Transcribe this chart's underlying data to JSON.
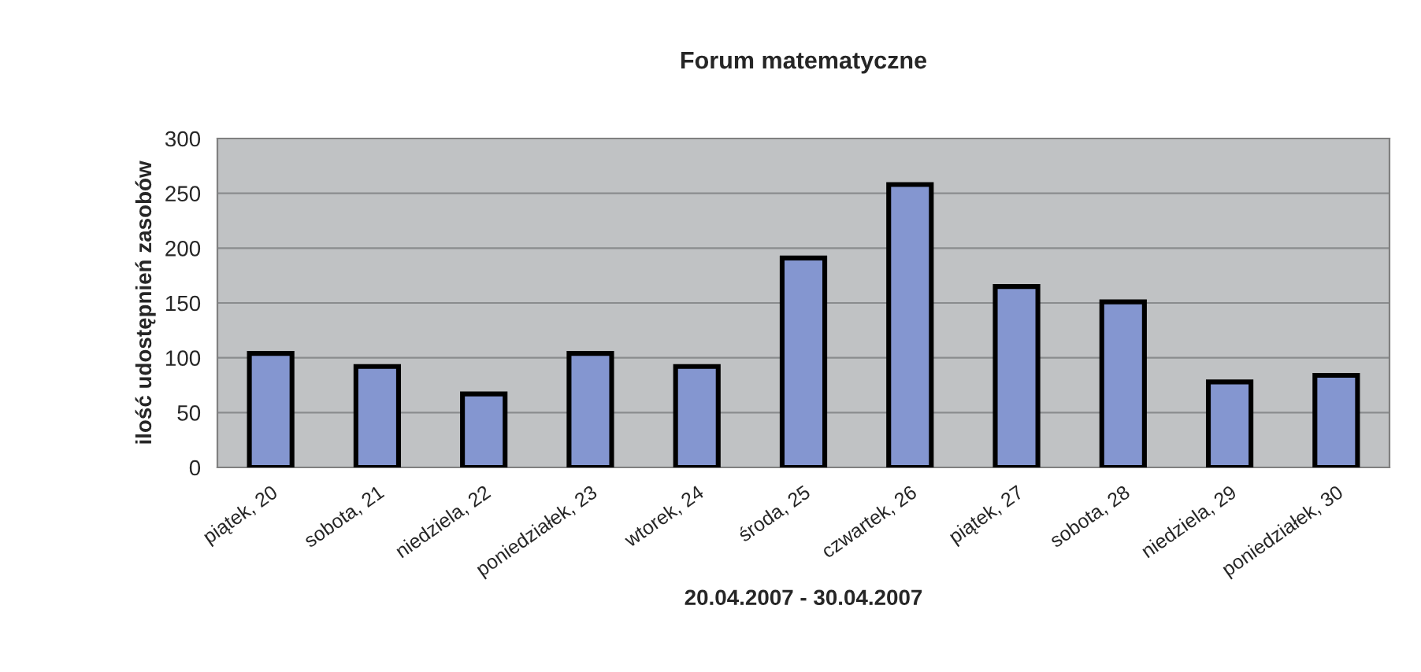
{
  "chart_data": {
    "type": "bar",
    "title": "Forum matematyczne",
    "xlabel": "20.04.2007 - 30.04.2007",
    "ylabel": "ilość udostępnień zasobów",
    "categories": [
      "piątek, 20",
      "sobota, 21",
      "niedziela, 22",
      "poniedziałek, 23",
      "wtorek, 24",
      "środa, 25",
      "czwartek, 26",
      "piątek, 27",
      "sobota, 28",
      "niedziela, 29",
      "poniedziałek, 30"
    ],
    "values": [
      104,
      92,
      67,
      104,
      92,
      191,
      258,
      165,
      151,
      78,
      84
    ],
    "color": "#8496d0",
    "ylim": [
      0,
      300
    ],
    "yticks": [
      0,
      50,
      100,
      150,
      200,
      250,
      300
    ],
    "grid": "y"
  }
}
